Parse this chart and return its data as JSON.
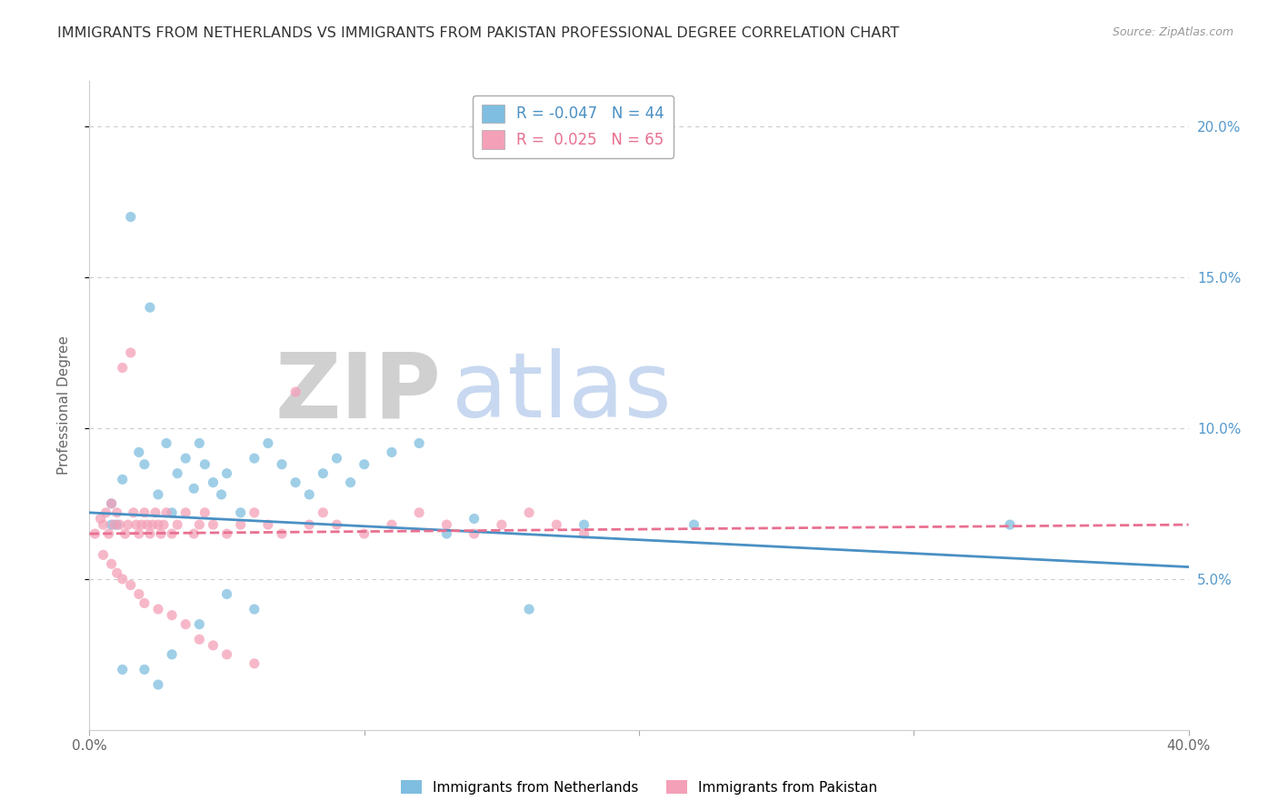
{
  "title": "IMMIGRANTS FROM NETHERLANDS VS IMMIGRANTS FROM PAKISTAN PROFESSIONAL DEGREE CORRELATION CHART",
  "source": "Source: ZipAtlas.com",
  "ylabel": "Professional Degree",
  "xlim": [
    0.0,
    0.4
  ],
  "ylim": [
    0.0,
    0.215
  ],
  "yticks": [
    0.05,
    0.1,
    0.15,
    0.2
  ],
  "ytick_labels_right": [
    "5.0%",
    "10.0%",
    "15.0%",
    "20.0%"
  ],
  "watermark_zip": "ZIP",
  "watermark_atlas": "atlas",
  "watermark_zip_color": "#d0d0d0",
  "watermark_atlas_color": "#c8d8f0",
  "legend_blue_r": -0.047,
  "legend_blue_n": 44,
  "legend_pink_r": 0.025,
  "legend_pink_n": 65,
  "blue_color": "#7fbee0",
  "pink_color": "#f4a0b8",
  "blue_line_color": "#4a90c4",
  "pink_line_color": "#e87090",
  "blue_scatter_x": [
    0.008,
    0.012,
    0.015,
    0.018,
    0.02,
    0.022,
    0.025,
    0.028,
    0.03,
    0.032,
    0.035,
    0.038,
    0.04,
    0.042,
    0.045,
    0.048,
    0.05,
    0.055,
    0.06,
    0.065,
    0.07,
    0.075,
    0.08,
    0.085,
    0.09,
    0.095,
    0.1,
    0.11,
    0.12,
    0.13,
    0.14,
    0.16,
    0.18,
    0.22,
    0.335,
    0.008,
    0.01,
    0.012,
    0.02,
    0.025,
    0.03,
    0.04,
    0.05,
    0.06
  ],
  "blue_scatter_y": [
    0.075,
    0.083,
    0.17,
    0.092,
    0.088,
    0.14,
    0.078,
    0.095,
    0.072,
    0.085,
    0.09,
    0.08,
    0.095,
    0.088,
    0.082,
    0.078,
    0.085,
    0.072,
    0.09,
    0.095,
    0.088,
    0.082,
    0.078,
    0.085,
    0.09,
    0.082,
    0.088,
    0.092,
    0.095,
    0.065,
    0.07,
    0.04,
    0.068,
    0.068,
    0.068,
    0.068,
    0.068,
    0.02,
    0.02,
    0.015,
    0.025,
    0.035,
    0.045,
    0.04
  ],
  "pink_scatter_x": [
    0.002,
    0.004,
    0.005,
    0.006,
    0.007,
    0.008,
    0.009,
    0.01,
    0.011,
    0.012,
    0.013,
    0.014,
    0.015,
    0.016,
    0.017,
    0.018,
    0.019,
    0.02,
    0.021,
    0.022,
    0.023,
    0.024,
    0.025,
    0.026,
    0.027,
    0.028,
    0.03,
    0.032,
    0.035,
    0.038,
    0.04,
    0.042,
    0.045,
    0.05,
    0.055,
    0.06,
    0.065,
    0.07,
    0.075,
    0.08,
    0.085,
    0.09,
    0.1,
    0.11,
    0.12,
    0.13,
    0.14,
    0.15,
    0.16,
    0.17,
    0.18,
    0.005,
    0.008,
    0.01,
    0.012,
    0.015,
    0.018,
    0.02,
    0.025,
    0.03,
    0.035,
    0.04,
    0.045,
    0.05,
    0.06
  ],
  "pink_scatter_y": [
    0.065,
    0.07,
    0.068,
    0.072,
    0.065,
    0.075,
    0.068,
    0.072,
    0.068,
    0.12,
    0.065,
    0.068,
    0.125,
    0.072,
    0.068,
    0.065,
    0.068,
    0.072,
    0.068,
    0.065,
    0.068,
    0.072,
    0.068,
    0.065,
    0.068,
    0.072,
    0.065,
    0.068,
    0.072,
    0.065,
    0.068,
    0.072,
    0.068,
    0.065,
    0.068,
    0.072,
    0.068,
    0.065,
    0.112,
    0.068,
    0.072,
    0.068,
    0.065,
    0.068,
    0.072,
    0.068,
    0.065,
    0.068,
    0.072,
    0.068,
    0.065,
    0.058,
    0.055,
    0.052,
    0.05,
    0.048,
    0.045,
    0.042,
    0.04,
    0.038,
    0.035,
    0.03,
    0.028,
    0.025,
    0.022
  ]
}
